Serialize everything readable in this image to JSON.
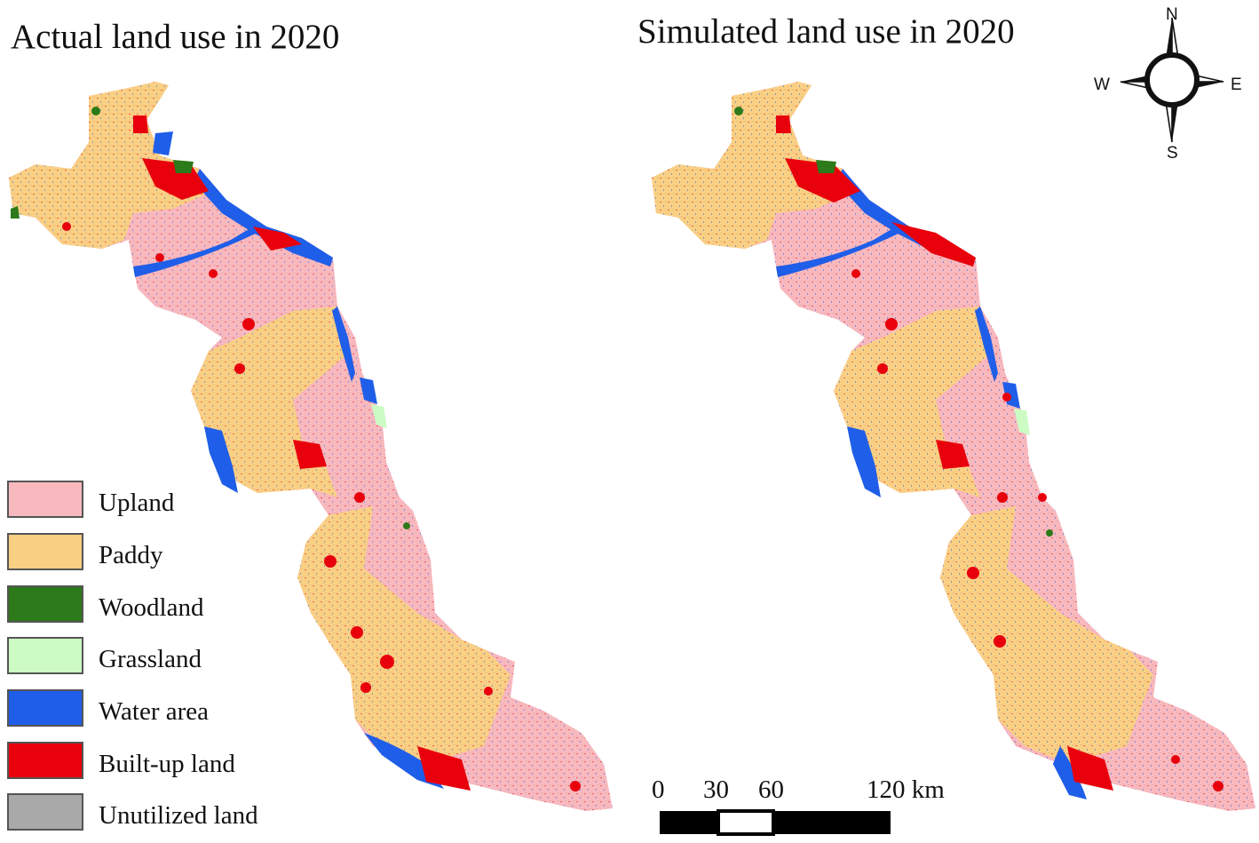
{
  "titles": {
    "actual": "Actual land use in 2020",
    "simulated": "Simulated land use in 2020"
  },
  "legend": [
    {
      "label": "Upland",
      "color": "#f7b8be"
    },
    {
      "label": "Paddy",
      "color": "#f9cf84"
    },
    {
      "label": "Woodland",
      "color": "#2c7a1a"
    },
    {
      "label": "Grassland",
      "color": "#ccfcc4"
    },
    {
      "label": "Water area",
      "color": "#1f5ee8"
    },
    {
      "label": "Built-up land",
      "color": "#e8000c"
    },
    {
      "label": "Unutilized land",
      "color": "#a9a9a9"
    }
  ],
  "compass": {
    "north": "N",
    "south": "S",
    "east": "E",
    "west": "W"
  },
  "scale_bar": {
    "ticks": [
      "0",
      "30",
      "60",
      "120 km"
    ]
  }
}
